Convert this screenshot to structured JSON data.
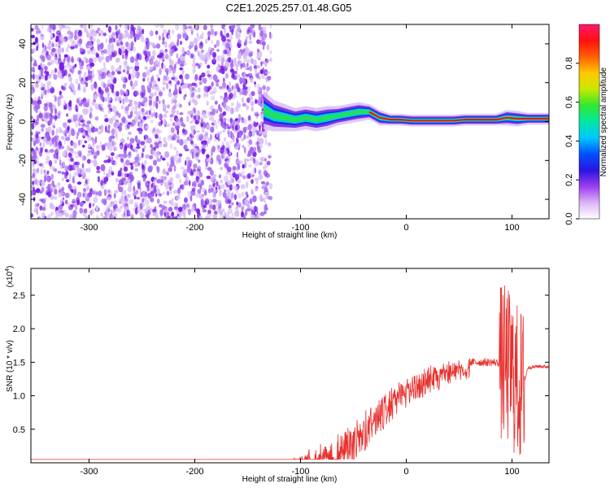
{
  "title": "C2E1.2025.257.01.48.G05",
  "colors": {
    "snr_line": "#e8302e",
    "scatter_strong": "#7a1ee6",
    "scatter_medium": "#a66af0",
    "scatter_light": "#d6bdf7"
  },
  "chart_data": [
    {
      "type": "heatmap",
      "name": "spectrogram",
      "xlabel": "Height of straight line (km)",
      "ylabel": "Frequency (Hz)",
      "xlim": [
        -355,
        135
      ],
      "ylim": [
        -50,
        50
      ],
      "xticks": [
        -300,
        -200,
        -100,
        0,
        100
      ],
      "yticks": [
        -40,
        -20,
        0,
        20,
        40
      ],
      "colorbar": {
        "label": "Normalized spectral amplitude",
        "range": [
          0,
          1
        ],
        "ticks": [
          0.0,
          0.2,
          0.4,
          0.6,
          0.8
        ],
        "colormap": [
          "#ffffff",
          "#dcb4f5",
          "#9a3df0",
          "#2a14e0",
          "#0050ff",
          "#00c8ff",
          "#00e8a0",
          "#30e830",
          "#c8e800",
          "#ffc800",
          "#ff6000",
          "#ff1010",
          "#ff1870"
        ]
      },
      "noise_region_x": [
        -355,
        -128
      ],
      "signal_track": [
        {
          "x": -135,
          "y": 6,
          "w": 10
        },
        {
          "x": -125,
          "y": 3,
          "w": 8
        },
        {
          "x": -115,
          "y": 2,
          "w": 7
        },
        {
          "x": -105,
          "y": 1,
          "w": 6
        },
        {
          "x": -95,
          "y": 2,
          "w": 6
        },
        {
          "x": -85,
          "y": 1,
          "w": 6
        },
        {
          "x": -75,
          "y": 2,
          "w": 6
        },
        {
          "x": -65,
          "y": 3,
          "w": 5
        },
        {
          "x": -55,
          "y": 4,
          "w": 5
        },
        {
          "x": -45,
          "y": 5,
          "w": 5
        },
        {
          "x": -35,
          "y": 5,
          "w": 4
        },
        {
          "x": -25,
          "y": 2,
          "w": 4
        },
        {
          "x": -15,
          "y": 1,
          "w": 3
        },
        {
          "x": -5,
          "y": 1,
          "w": 3
        },
        {
          "x": 5,
          "y": 0.5,
          "w": 3
        },
        {
          "x": 15,
          "y": 0.5,
          "w": 3
        },
        {
          "x": 25,
          "y": 0.5,
          "w": 3
        },
        {
          "x": 35,
          "y": 0.5,
          "w": 3
        },
        {
          "x": 45,
          "y": 0.5,
          "w": 3
        },
        {
          "x": 55,
          "y": 1,
          "w": 3
        },
        {
          "x": 65,
          "y": 1,
          "w": 3
        },
        {
          "x": 75,
          "y": 1,
          "w": 3
        },
        {
          "x": 85,
          "y": 1,
          "w": 3
        },
        {
          "x": 95,
          "y": 2,
          "w": 4
        },
        {
          "x": 105,
          "y": 1.5,
          "w": 4
        },
        {
          "x": 115,
          "y": 1.5,
          "w": 3
        },
        {
          "x": 125,
          "y": 1.5,
          "w": 3
        },
        {
          "x": 135,
          "y": 1.5,
          "w": 3
        }
      ]
    },
    {
      "type": "line",
      "name": "snr",
      "xlabel": "Height of straight line (km)",
      "ylabel": "SNR (10 * v/v)",
      "yscale_label": "(x10",
      "yscale_exp": "4",
      "yscale_close": ")",
      "xlim": [
        -355,
        135
      ],
      "ylim": [
        0,
        2.9
      ],
      "xticks": [
        -300,
        -200,
        -100,
        0,
        100
      ],
      "yticks": [
        0.5,
        1.0,
        1.5,
        2.0,
        2.5
      ],
      "envelope": [
        {
          "x": -355,
          "y": 0.03
        },
        {
          "x": -110,
          "y": 0.03
        },
        {
          "x": -100,
          "y": 0.08
        },
        {
          "x": -90,
          "y": 0.15
        },
        {
          "x": -80,
          "y": 0.22
        },
        {
          "x": -70,
          "y": 0.3
        },
        {
          "x": -60,
          "y": 0.42
        },
        {
          "x": -50,
          "y": 0.55
        },
        {
          "x": -40,
          "y": 0.7
        },
        {
          "x": -30,
          "y": 0.85
        },
        {
          "x": -20,
          "y": 1.0
        },
        {
          "x": -10,
          "y": 1.12
        },
        {
          "x": 0,
          "y": 1.22
        },
        {
          "x": 10,
          "y": 1.3
        },
        {
          "x": 20,
          "y": 1.37
        },
        {
          "x": 30,
          "y": 1.42
        },
        {
          "x": 40,
          "y": 1.46
        },
        {
          "x": 50,
          "y": 1.49
        },
        {
          "x": 60,
          "y": 1.5
        },
        {
          "x": 70,
          "y": 1.5
        },
        {
          "x": 80,
          "y": 1.5
        },
        {
          "x": 90,
          "y": 1.49
        },
        {
          "x": 95,
          "y": 1.45
        },
        {
          "x": 100,
          "y": 1.35
        },
        {
          "x": 105,
          "y": 1.2
        },
        {
          "x": 110,
          "y": 1.1
        },
        {
          "x": 115,
          "y": 1.42
        },
        {
          "x": 125,
          "y": 1.44
        },
        {
          "x": 135,
          "y": 1.43
        }
      ]
    }
  ]
}
